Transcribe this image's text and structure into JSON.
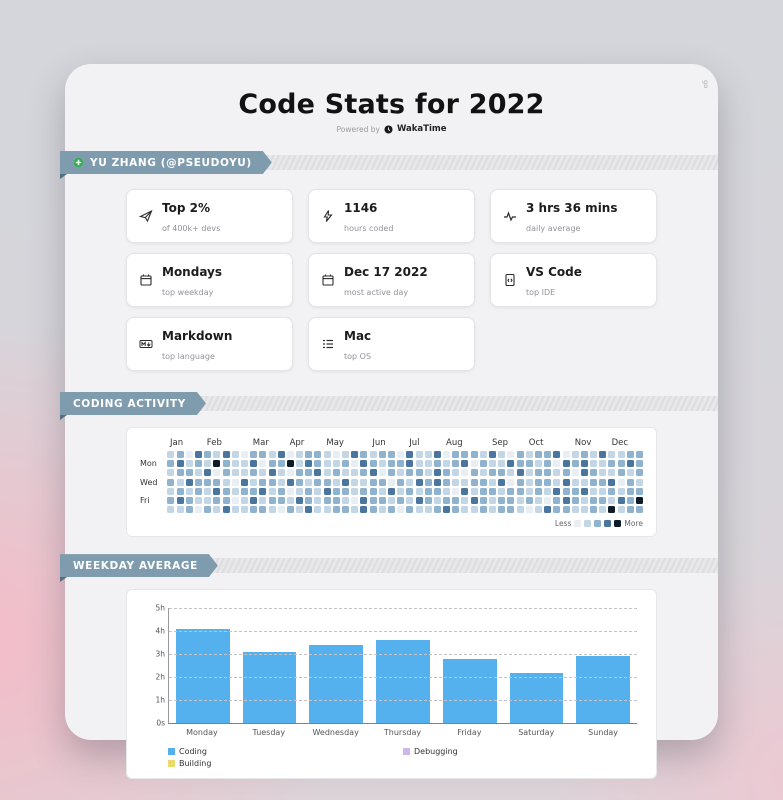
{
  "page": {
    "title": "Code Stats for 2022",
    "powered_by": "Powered by",
    "brand": "WakaTime",
    "corner_label": "go"
  },
  "header": {
    "user_ribbon": "YU ZHANG (@PSEUDOYU)"
  },
  "stats": [
    {
      "icon": "paper-plane",
      "title": "Top 2%",
      "subtitle": "of 400k+ devs"
    },
    {
      "icon": "lightning",
      "title": "1146",
      "subtitle": "hours coded"
    },
    {
      "icon": "pulse",
      "title": "3 hrs 36 mins",
      "subtitle": "daily average"
    },
    {
      "icon": "calendar",
      "title": "Mondays",
      "subtitle": "top weekday"
    },
    {
      "icon": "calendar",
      "title": "Dec 17 2022",
      "subtitle": "most active day"
    },
    {
      "icon": "code-file",
      "title": "VS Code",
      "subtitle": "top IDE"
    },
    {
      "icon": "markdown",
      "title": "Markdown",
      "subtitle": "top language"
    },
    {
      "icon": "list",
      "title": "Mac",
      "subtitle": "top OS"
    }
  ],
  "chart_data": [
    {
      "type": "heatmap",
      "title": "CODING ACTIVITY",
      "months": [
        {
          "label": "Jan",
          "week": 0
        },
        {
          "label": "Feb",
          "week": 4
        },
        {
          "label": "Mar",
          "week": 9
        },
        {
          "label": "Apr",
          "week": 13
        },
        {
          "label": "May",
          "week": 17
        },
        {
          "label": "Jun",
          "week": 22
        },
        {
          "label": "Jul",
          "week": 26
        },
        {
          "label": "Aug",
          "week": 30
        },
        {
          "label": "Sep",
          "week": 35
        },
        {
          "label": "Oct",
          "week": 39
        },
        {
          "label": "Nov",
          "week": 44
        },
        {
          "label": "Dec",
          "week": 48
        }
      ],
      "day_labels": [
        "",
        "Mon",
        "",
        "Wed",
        "",
        "Fri",
        ""
      ],
      "palette": [
        "#e9eef2",
        "#c3d6e5",
        "#8fb3ce",
        "#49759e",
        "#0e1c2a"
      ],
      "rows": [
        "1203213102213012210132122031130222131021223012131122",
        "2312142113022413211203212231121230211322120323112232",
        "1221302112131022312112302122132102122131221203211212",
        "2132221031221321221311220213232112213021221311223021",
        "1212132122312012132212213121221031221221213223112122",
        "2321122013122132122103221213212213212212102321221324",
        "1120213112210213112213212021123211212210132211214122"
      ],
      "legend_less": "Less",
      "legend_more": "More"
    },
    {
      "type": "bar",
      "title": "WEEKDAY AVERAGE",
      "categories": [
        "Monday",
        "Tuesday",
        "Wednesday",
        "Thursday",
        "Friday",
        "Saturday",
        "Sunday"
      ],
      "series": [
        {
          "name": "Coding",
          "color": "#55b1ee",
          "values": [
            4.1,
            3.1,
            3.4,
            3.6,
            2.8,
            2.2,
            2.9
          ]
        }
      ],
      "yticks": [
        "5h",
        "4h",
        "3h",
        "2h",
        "1h",
        "0s"
      ],
      "ylim": [
        0,
        5
      ],
      "grid": "dashed-horizontal",
      "legend_position": "bottom-left",
      "legend": [
        {
          "label": "Coding",
          "color": "#55b1ee"
        },
        {
          "label": "Debugging",
          "color": "#cbb8ea"
        },
        {
          "label": "Building",
          "color": "#e9da6e"
        }
      ]
    }
  ]
}
